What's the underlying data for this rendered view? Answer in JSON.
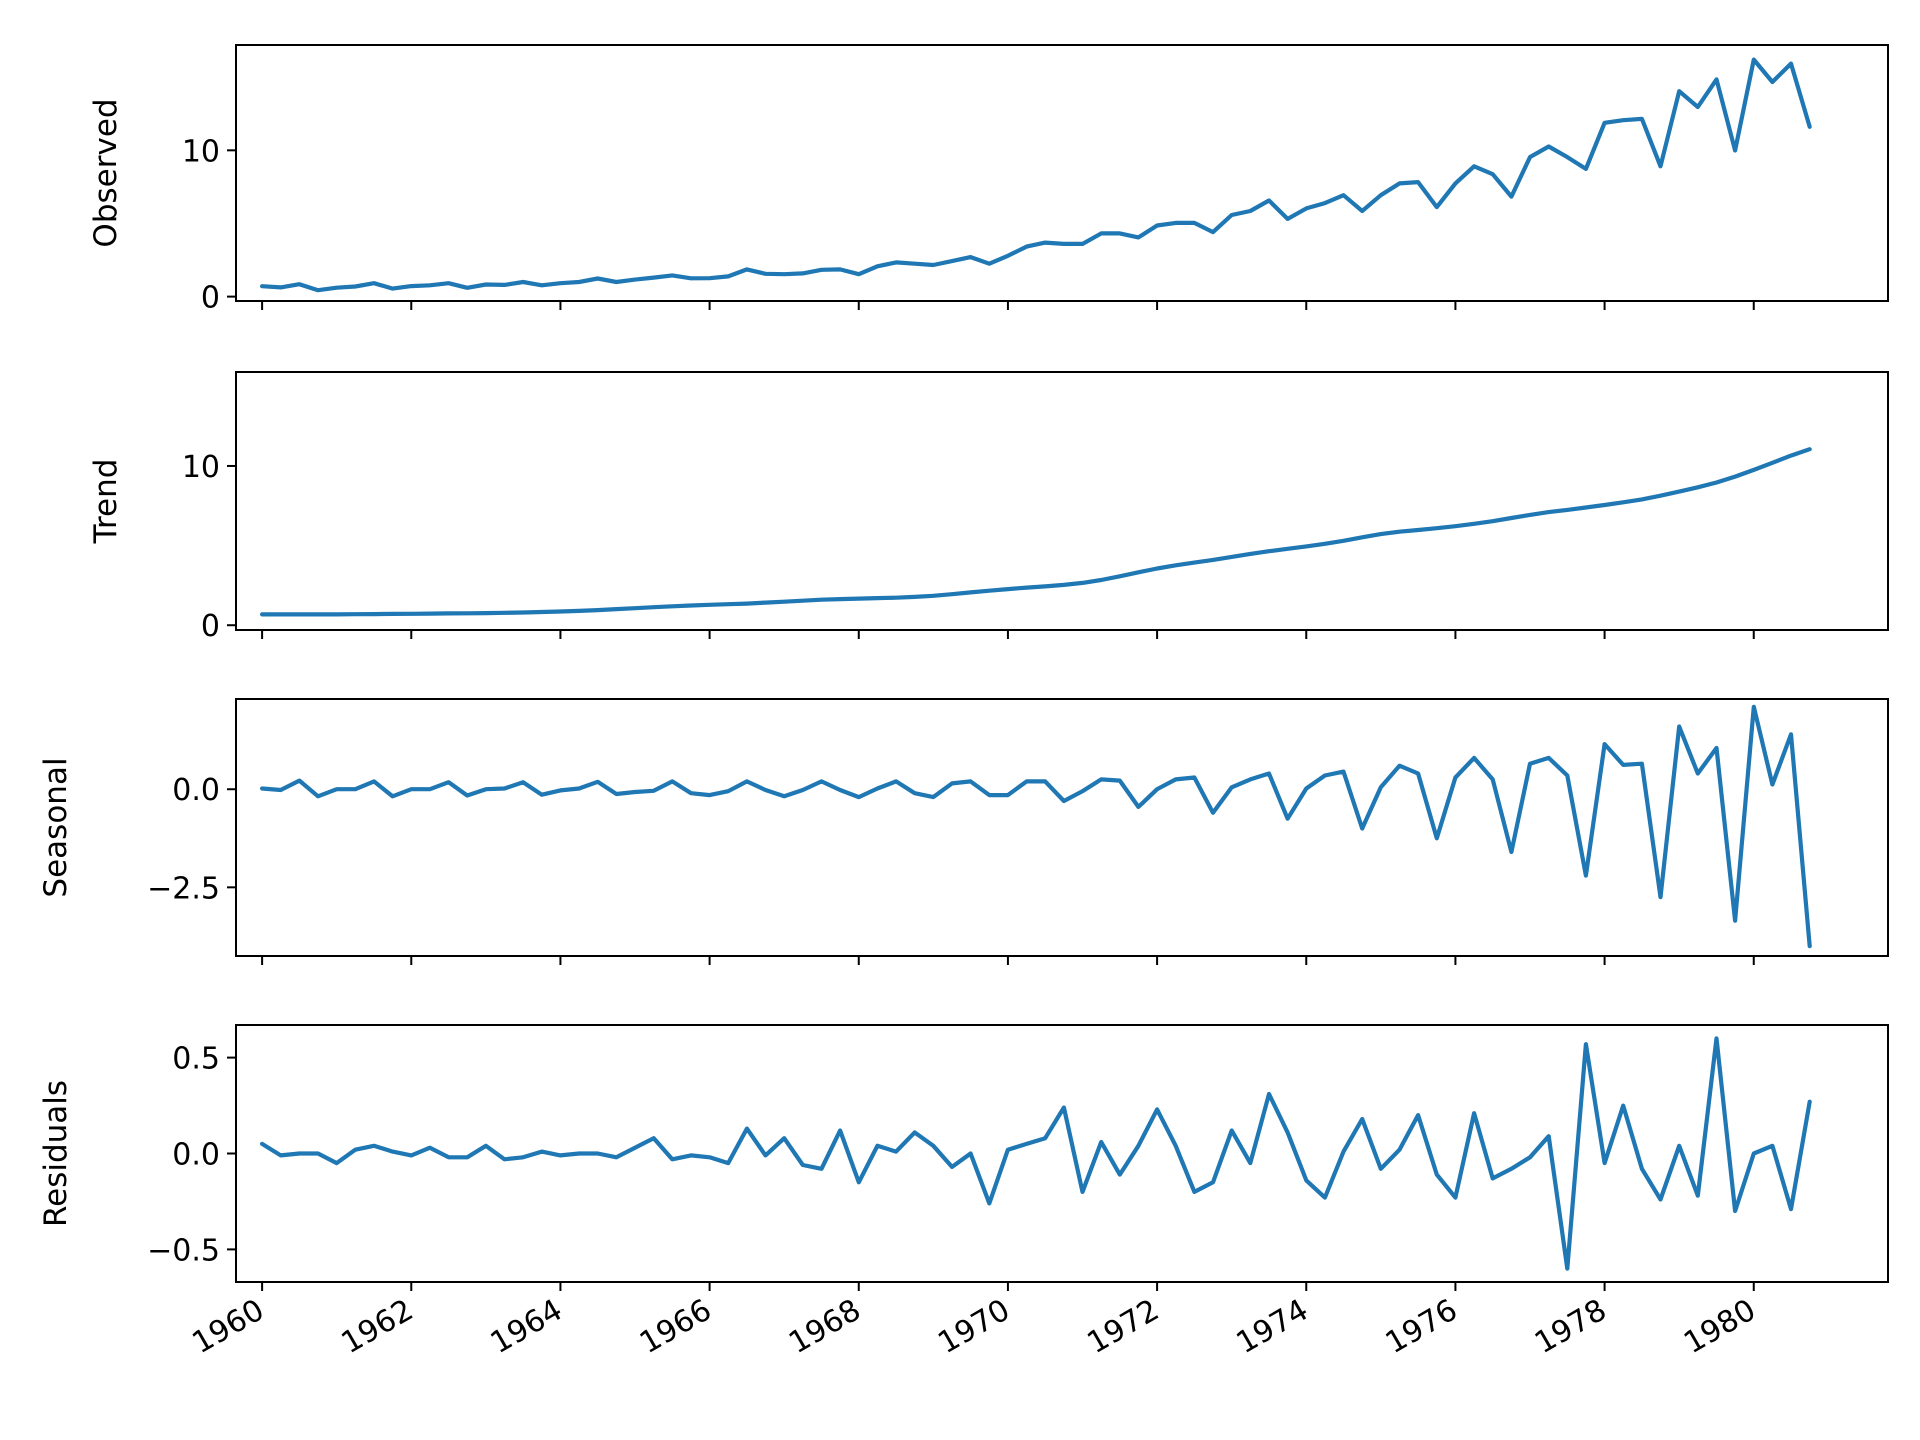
{
  "chart_data": {
    "type": "line",
    "title": "",
    "x_start_year": 1960,
    "x_step_years": 0.25,
    "xlim": [
      1959.65,
      1981.8
    ],
    "x_ticks": [
      1960,
      1962,
      1964,
      1966,
      1968,
      1970,
      1972,
      1974,
      1976,
      1978,
      1980
    ],
    "x_tick_labels": [
      "1960",
      "1962",
      "1964",
      "1966",
      "1968",
      "1970",
      "1972",
      "1974",
      "1976",
      "1978",
      "1980"
    ],
    "color": "#1f77b4",
    "panels": [
      {
        "name": "observed",
        "ylabel": "Observed",
        "ylim": [
          -0.3,
          17.2
        ],
        "y_ticks": [
          0,
          10
        ],
        "y_tick_labels": [
          "0",
          "10"
        ],
        "values": [
          0.71,
          0.63,
          0.85,
          0.44,
          0.61,
          0.69,
          0.92,
          0.55,
          0.72,
          0.77,
          0.92,
          0.6,
          0.83,
          0.8,
          1.0,
          0.77,
          0.92,
          1.0,
          1.24,
          1.0,
          1.16,
          1.3,
          1.45,
          1.25,
          1.26,
          1.38,
          1.86,
          1.56,
          1.53,
          1.59,
          1.83,
          1.86,
          1.53,
          2.07,
          2.34,
          2.25,
          2.16,
          2.43,
          2.7,
          2.25,
          2.79,
          3.42,
          3.69,
          3.6,
          3.6,
          4.32,
          4.32,
          4.05,
          4.86,
          5.04,
          5.04,
          4.41,
          5.58,
          5.85,
          6.57,
          5.31,
          6.03,
          6.39,
          6.93,
          5.85,
          6.93,
          7.74,
          7.83,
          6.12,
          7.74,
          8.91,
          8.37,
          6.84,
          9.54,
          10.26,
          9.54,
          8.73,
          11.88,
          12.06,
          12.15,
          8.91,
          14.04,
          12.96,
          14.85,
          9.99,
          16.2,
          14.67,
          15.93,
          11.61
        ]
      },
      {
        "name": "trend",
        "ylabel": "Trend",
        "ylim": [
          -0.3,
          15.9
        ],
        "y_ticks": [
          0,
          10
        ],
        "y_tick_labels": [
          "0",
          "10"
        ],
        "values": [
          0.68,
          0.68,
          0.68,
          0.68,
          0.68,
          0.69,
          0.7,
          0.71,
          0.72,
          0.73,
          0.74,
          0.75,
          0.76,
          0.78,
          0.8,
          0.83,
          0.86,
          0.9,
          0.95,
          1.01,
          1.07,
          1.13,
          1.19,
          1.24,
          1.28,
          1.32,
          1.36,
          1.42,
          1.48,
          1.54,
          1.6,
          1.64,
          1.67,
          1.7,
          1.73,
          1.78,
          1.85,
          1.95,
          2.06,
          2.17,
          2.27,
          2.36,
          2.44,
          2.53,
          2.66,
          2.84,
          3.07,
          3.32,
          3.56,
          3.76,
          3.93,
          4.1,
          4.29,
          4.48,
          4.65,
          4.8,
          4.95,
          5.11,
          5.3,
          5.52,
          5.72,
          5.87,
          5.98,
          6.09,
          6.22,
          6.37,
          6.53,
          6.73,
          6.93,
          7.1,
          7.24,
          7.39,
          7.55,
          7.72,
          7.9,
          8.13,
          8.39,
          8.66,
          8.96,
          9.33,
          9.75,
          10.2,
          10.65,
          11.05
        ]
      },
      {
        "name": "seasonal",
        "ylabel": "Seasonal",
        "ylim": [
          -4.25,
          2.3
        ],
        "y_ticks": [
          -2.5,
          0.0
        ],
        "y_tick_labels": [
          "−2.5",
          "0.0"
        ],
        "values": [
          0.02,
          -0.02,
          0.22,
          -0.18,
          0.0,
          0.0,
          0.2,
          -0.18,
          0.0,
          0.0,
          0.18,
          -0.16,
          0.0,
          0.02,
          0.18,
          -0.14,
          -0.03,
          0.02,
          0.19,
          -0.12,
          -0.07,
          -0.04,
          0.2,
          -0.1,
          -0.15,
          -0.05,
          0.2,
          -0.02,
          -0.18,
          -0.02,
          0.2,
          -0.02,
          -0.2,
          0.02,
          0.2,
          -0.1,
          -0.2,
          0.15,
          0.2,
          -0.15,
          -0.15,
          0.2,
          0.2,
          -0.3,
          -0.05,
          0.25,
          0.22,
          -0.45,
          0.0,
          0.25,
          0.3,
          -0.6,
          0.05,
          0.25,
          0.4,
          -0.75,
          0.02,
          0.35,
          0.45,
          -1.0,
          0.05,
          0.6,
          0.4,
          -1.25,
          0.3,
          0.8,
          0.25,
          -1.6,
          0.65,
          0.8,
          0.35,
          -2.2,
          1.15,
          0.62,
          0.65,
          -2.75,
          1.6,
          0.4,
          1.05,
          -3.35,
          2.1,
          0.12,
          1.4,
          -4.0
        ]
      },
      {
        "name": "residuals",
        "ylabel": "Residuals",
        "ylim": [
          -0.67,
          0.67
        ],
        "y_ticks": [
          -0.5,
          0.0,
          0.5
        ],
        "y_tick_labels": [
          "−0.5",
          "0.0",
          "0.5"
        ],
        "values": [
          0.05,
          -0.01,
          0.0,
          0.0,
          -0.05,
          0.02,
          0.04,
          0.01,
          -0.01,
          0.03,
          -0.02,
          -0.02,
          0.04,
          -0.03,
          -0.02,
          0.01,
          -0.01,
          0.0,
          0.0,
          -0.02,
          0.03,
          0.08,
          -0.03,
          -0.01,
          -0.02,
          -0.05,
          0.13,
          -0.01,
          0.08,
          -0.06,
          -0.08,
          0.12,
          -0.15,
          0.04,
          0.01,
          0.11,
          0.04,
          -0.07,
          0.0,
          -0.26,
          0.02,
          0.05,
          0.08,
          0.24,
          -0.2,
          0.06,
          -0.11,
          0.04,
          0.23,
          0.04,
          -0.2,
          -0.15,
          0.12,
          -0.05,
          0.31,
          0.11,
          -0.14,
          -0.23,
          0.01,
          0.18,
          -0.08,
          0.02,
          0.2,
          -0.11,
          -0.23,
          0.21,
          -0.13,
          -0.08,
          -0.02,
          0.09,
          -0.6,
          0.57,
          -0.05,
          0.25,
          -0.08,
          -0.24,
          0.04,
          -0.22,
          0.6,
          -0.3,
          0.0,
          0.04,
          -0.29,
          0.27
        ]
      }
    ]
  }
}
